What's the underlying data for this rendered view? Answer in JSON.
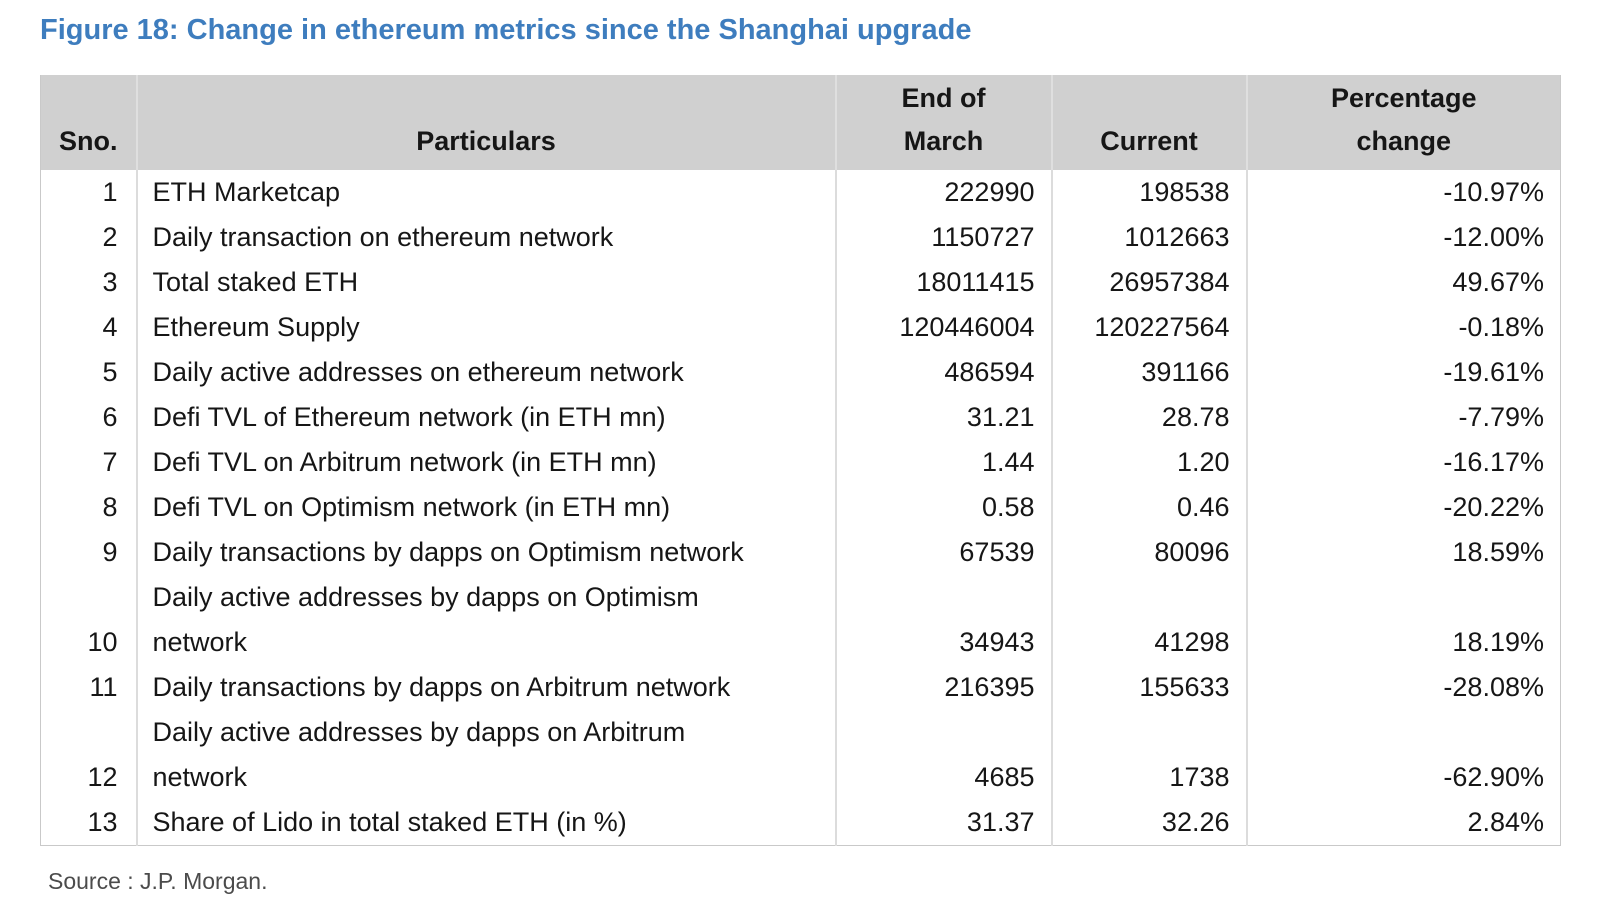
{
  "colors": {
    "title": "#3e7dbe",
    "header_bg": "#d0d0d0"
  },
  "chart_data": {
    "type": "table",
    "title": "Figure 18: Change in ethereum metrics since the Shanghai upgrade",
    "headers": {
      "sno": "Sno.",
      "particulars": "Particulars",
      "end_of_march": "End of\nMarch",
      "current": "Current",
      "percentage_change": "Percentage\nchange"
    },
    "rows": [
      {
        "sno": "1",
        "particulars": "ETH Marketcap",
        "end_of_march": "222990",
        "current": "198538",
        "percentage_change": "-10.97%"
      },
      {
        "sno": "2",
        "particulars": "Daily transaction on ethereum network",
        "end_of_march": "1150727",
        "current": "1012663",
        "percentage_change": "-12.00%"
      },
      {
        "sno": "3",
        "particulars": "Total staked ETH",
        "end_of_march": "18011415",
        "current": "26957384",
        "percentage_change": "49.67%"
      },
      {
        "sno": "4",
        "particulars": "Ethereum Supply",
        "end_of_march": "120446004",
        "current": "120227564",
        "percentage_change": "-0.18%"
      },
      {
        "sno": "5",
        "particulars": "Daily active addresses on ethereum network",
        "end_of_march": "486594",
        "current": "391166",
        "percentage_change": "-19.61%"
      },
      {
        "sno": "6",
        "particulars": "Defi TVL of Ethereum network (in ETH mn)",
        "end_of_march": "31.21",
        "current": "28.78",
        "percentage_change": "-7.79%"
      },
      {
        "sno": "7",
        "particulars": "Defi TVL on Arbitrum network (in ETH mn)",
        "end_of_march": "1.44",
        "current": "1.20",
        "percentage_change": "-16.17%"
      },
      {
        "sno": "8",
        "particulars": "Defi TVL on Optimism network (in ETH mn)",
        "end_of_march": "0.58",
        "current": "0.46",
        "percentage_change": "-20.22%"
      },
      {
        "sno": "9",
        "particulars": "Daily transactions by dapps on Optimism network",
        "end_of_march": "67539",
        "current": "80096",
        "percentage_change": "18.59%"
      },
      {
        "sno": "10",
        "particulars": "Daily active addresses by dapps on Optimism\nnetwork",
        "end_of_march": "34943",
        "current": "41298",
        "percentage_change": "18.19%"
      },
      {
        "sno": "11",
        "particulars": "Daily transactions by dapps on Arbitrum network",
        "end_of_march": "216395",
        "current": "155633",
        "percentage_change": "-28.08%"
      },
      {
        "sno": "12",
        "particulars": "Daily active addresses by dapps on Arbitrum\nnetwork",
        "end_of_march": "4685",
        "current": "1738",
        "percentage_change": "-62.90%"
      },
      {
        "sno": "13",
        "particulars": "Share of Lido in total staked ETH (in %)",
        "end_of_march": "31.37",
        "current": "32.26",
        "percentage_change": "2.84%"
      }
    ],
    "source": "Source : J.P. Morgan."
  }
}
